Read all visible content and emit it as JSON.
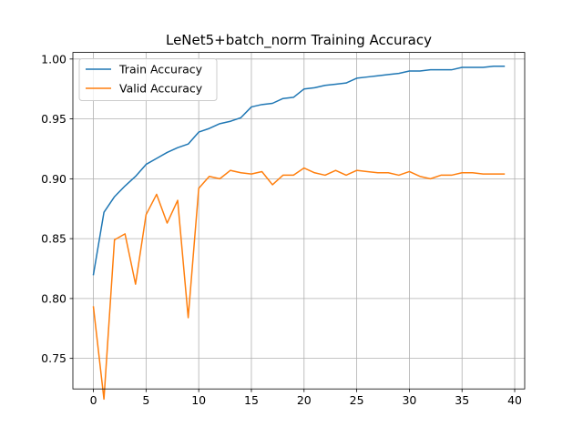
{
  "chart_data": {
    "type": "line",
    "title": "LeNet5+batch_norm Training Accuracy",
    "xlabel": "",
    "ylabel": "",
    "xlim": [
      -1.95,
      40.95
    ],
    "ylim": [
      0.7245,
      1.0055
    ],
    "xticks": [
      0,
      5,
      10,
      15,
      20,
      25,
      30,
      35,
      40
    ],
    "yticks": [
      0.75,
      0.8,
      0.85,
      0.9,
      0.95,
      1.0
    ],
    "ytick_labels": [
      "0.75",
      "0.80",
      "0.85",
      "0.90",
      "0.95",
      "1.00"
    ],
    "grid": true,
    "legend_position": "upper-left",
    "x": [
      0,
      1,
      2,
      3,
      4,
      5,
      6,
      7,
      8,
      9,
      10,
      11,
      12,
      13,
      14,
      15,
      16,
      17,
      18,
      19,
      20,
      21,
      22,
      23,
      24,
      25,
      26,
      27,
      28,
      29,
      30,
      31,
      32,
      33,
      34,
      35,
      36,
      37,
      38,
      39
    ],
    "series": [
      {
        "name": "Train Accuracy",
        "color": "#1f77b4",
        "values": [
          0.82,
          0.872,
          0.885,
          0.894,
          0.902,
          0.912,
          0.917,
          0.922,
          0.926,
          0.929,
          0.939,
          0.942,
          0.946,
          0.948,
          0.951,
          0.96,
          0.962,
          0.963,
          0.967,
          0.968,
          0.975,
          0.976,
          0.978,
          0.979,
          0.98,
          0.984,
          0.985,
          0.986,
          0.987,
          0.988,
          0.99,
          0.99,
          0.991,
          0.991,
          0.991,
          0.993,
          0.993,
          0.993,
          0.994,
          0.994
        ]
      },
      {
        "name": "Valid Accuracy",
        "color": "#ff7f0e",
        "values": [
          0.793,
          0.716,
          0.849,
          0.854,
          0.812,
          0.87,
          0.887,
          0.863,
          0.882,
          0.784,
          0.892,
          0.902,
          0.9,
          0.907,
          0.905,
          0.904,
          0.906,
          0.895,
          0.903,
          0.903,
          0.909,
          0.905,
          0.903,
          0.907,
          0.903,
          0.907,
          0.906,
          0.905,
          0.905,
          0.903,
          0.906,
          0.902,
          0.9,
          0.903,
          0.903,
          0.905,
          0.905,
          0.904,
          0.904,
          0.904
        ]
      }
    ]
  }
}
